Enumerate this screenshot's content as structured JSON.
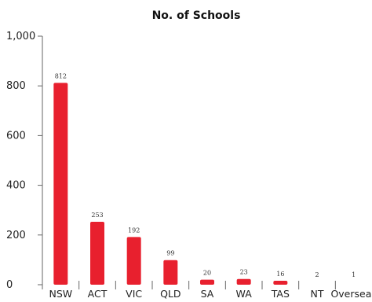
{
  "chart_data": {
    "type": "bar",
    "title": "No. of Schools",
    "xlabel": "",
    "ylabel": "",
    "categories": [
      "NSW",
      "ACT",
      "VIC",
      "QLD",
      "SA",
      "WA",
      "TAS",
      "NT",
      "Overseas"
    ],
    "values": [
      812,
      253,
      192,
      99,
      20,
      23,
      16,
      2,
      1
    ],
    "data_labels": [
      "812",
      "253",
      "192",
      "99",
      "20",
      "23",
      "16",
      "2",
      "1"
    ],
    "ylim": [
      0,
      1000
    ],
    "yticks": [
      0,
      200,
      400,
      600,
      800,
      1000
    ],
    "ytick_labels": [
      "0",
      "200",
      "400",
      "600",
      "800",
      "1,000"
    ],
    "grid": false,
    "bar_color": "#e8202e"
  }
}
